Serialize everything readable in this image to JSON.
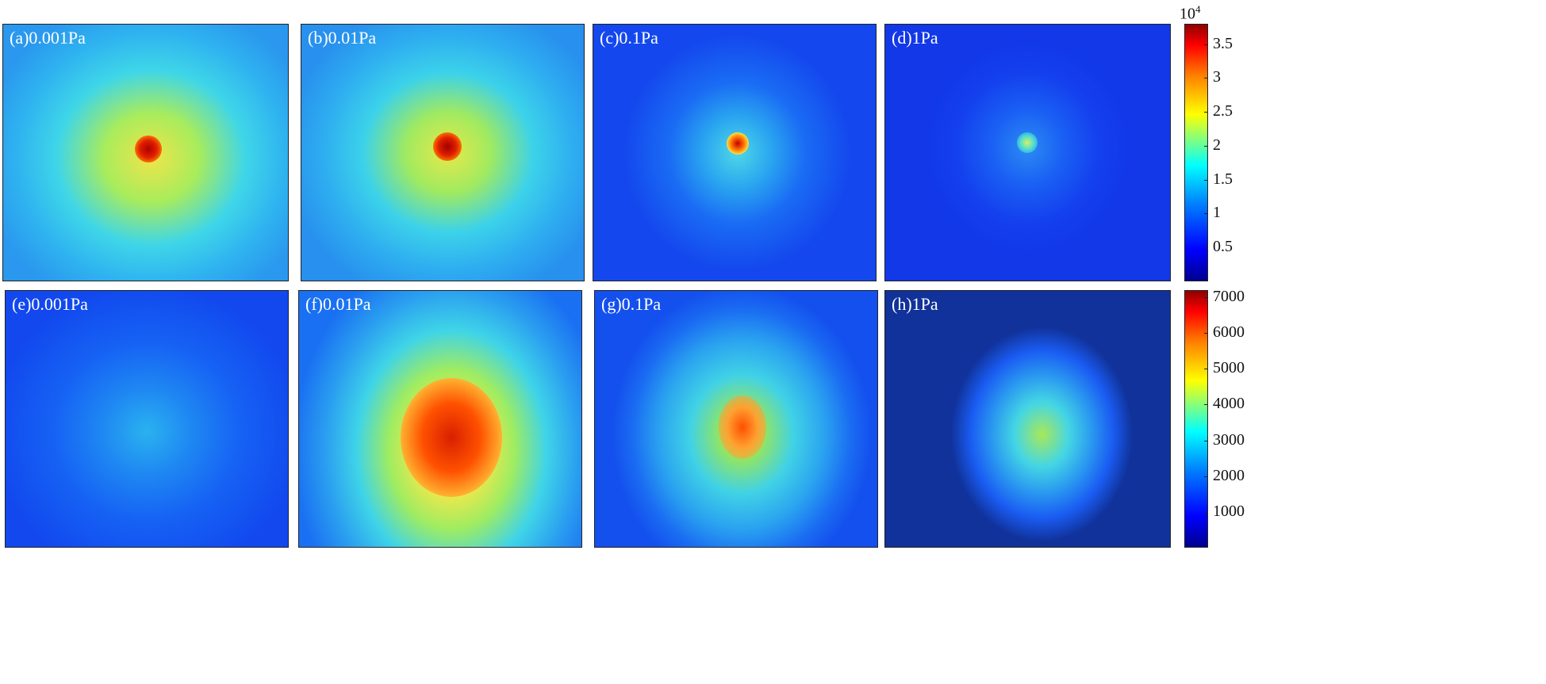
{
  "panels_top": [
    {
      "label": "(a)0.001Pa"
    },
    {
      "label": "(b)0.01Pa"
    },
    {
      "label": "(c)0.1Pa"
    },
    {
      "label": "(d)1Pa"
    }
  ],
  "panels_bottom": [
    {
      "label": "(e)0.001Pa"
    },
    {
      "label": "(f)0.01Pa"
    },
    {
      "label": "(g)0.1Pa"
    },
    {
      "label": "(h)1Pa"
    }
  ],
  "colorbar_top": {
    "exponent_base": "10",
    "exponent_power": "4",
    "ticks": [
      "3.5",
      "3",
      "2.5",
      "2",
      "1.5",
      "1",
      "0.5"
    ],
    "range": [
      0,
      3.8
    ]
  },
  "colorbar_bottom": {
    "ticks": [
      "7000",
      "6000",
      "5000",
      "4000",
      "3000",
      "2000",
      "1000"
    ],
    "range": [
      0,
      7200
    ]
  },
  "colors": {
    "jet_low": "#00008f",
    "jet_blue": "#0050ff",
    "jet_cyan": "#00d0ff",
    "jet_yellow": "#ffe000",
    "jet_red": "#b00000"
  }
}
